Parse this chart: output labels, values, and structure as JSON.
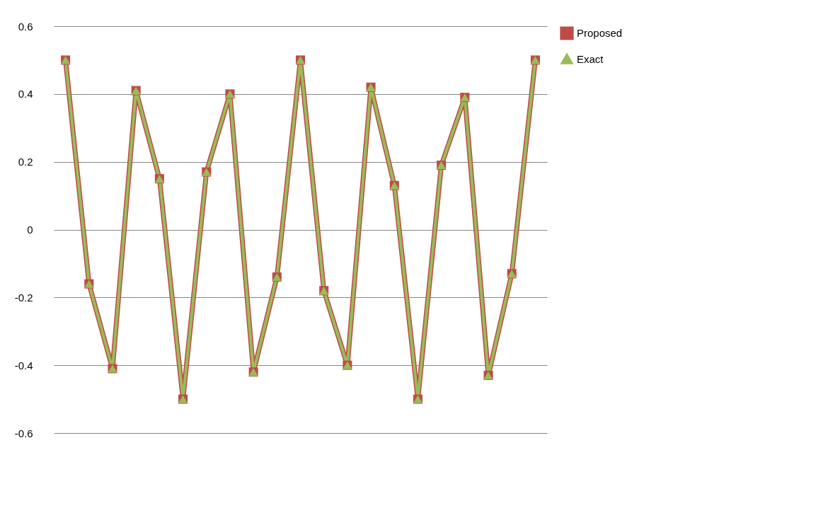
{
  "chart_data": {
    "type": "line",
    "categories": [
      null,
      null,
      null,
      null,
      null,
      null,
      null,
      null,
      null,
      null,
      null,
      null,
      null,
      null,
      null,
      null,
      null,
      null,
      null,
      null,
      null
    ],
    "series": [
      {
        "name": "Proposed",
        "color": "#be4b48",
        "marker": "square",
        "values": [
          0.5,
          -0.16,
          -0.41,
          0.41,
          0.15,
          -0.5,
          0.17,
          0.4,
          -0.42,
          -0.14,
          0.5,
          -0.18,
          -0.4,
          0.42,
          0.13,
          -0.5,
          0.19,
          0.39,
          -0.43,
          -0.13,
          0.5
        ]
      },
      {
        "name": "Exact",
        "color": "#9bbb59",
        "marker": "triangle",
        "values": [
          0.5,
          -0.16,
          -0.41,
          0.41,
          0.15,
          -0.5,
          0.17,
          0.4,
          -0.42,
          -0.14,
          0.5,
          -0.18,
          -0.4,
          0.42,
          0.13,
          -0.5,
          0.19,
          0.39,
          -0.43,
          -0.13,
          0.5
        ]
      }
    ],
    "ylim": [
      -0.6,
      0.6
    ],
    "yticks": [
      -0.6,
      -0.4,
      -0.2,
      0,
      0.2,
      0.4,
      0.6
    ],
    "grid": "y",
    "legend": "right",
    "tick_labels": "y",
    "line_style": "solid"
  }
}
